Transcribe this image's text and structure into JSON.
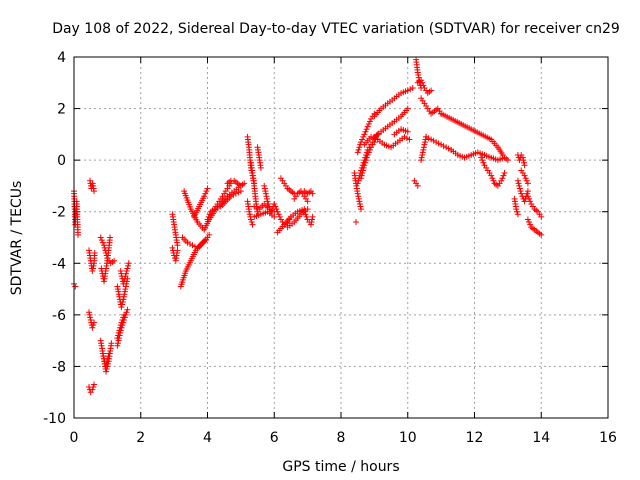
{
  "chart_data": {
    "type": "scatter",
    "title": "Day 108 of 2022, Sidereal Day-to-day VTEC variation (SDTVAR) for receiver cn29",
    "xlabel": "GPS time / hours",
    "ylabel": "SDTVAR / TECUs",
    "xlim": [
      0,
      16
    ],
    "ylim": [
      -10,
      4
    ],
    "xticks": [
      "0",
      "2",
      "4",
      "6",
      "8",
      "10",
      "12",
      "14",
      "16"
    ],
    "yticks": [
      "-10",
      "-8",
      "-6",
      "-4",
      "-2",
      "0",
      "2",
      "4"
    ],
    "grid": true,
    "marker": "+",
    "color": "#ff0000",
    "segments": [
      {
        "x": [
          0.0,
          0.04,
          0.08,
          0.12
        ],
        "y": [
          -1.2,
          -2.5,
          -1.6,
          -2.9
        ]
      },
      {
        "x": [
          0.0,
          0.04
        ],
        "y": [
          -4.8,
          -4.9
        ]
      },
      {
        "x": [
          0.48,
          0.52,
          0.56,
          0.6
        ],
        "y": [
          -0.8,
          -1.1,
          -0.9,
          -1.2
        ]
      },
      {
        "x": [
          0.45,
          0.5,
          0.55,
          0.6
        ],
        "y": [
          -8.8,
          -9.0,
          -8.9,
          -8.7
        ]
      },
      {
        "x": [
          0.45,
          0.5,
          0.55,
          0.6,
          0.62
        ],
        "y": [
          -3.5,
          -3.9,
          -4.3,
          -4.0,
          -3.6
        ]
      },
      {
        "x": [
          0.45,
          0.5,
          0.55,
          0.6
        ],
        "y": [
          -5.9,
          -6.2,
          -6.5,
          -6.3
        ]
      },
      {
        "x": [
          0.8,
          0.9,
          1.0,
          1.1,
          1.2
        ],
        "y": [
          -3.0,
          -3.3,
          -3.8,
          -4.0,
          -3.9
        ]
      },
      {
        "x": [
          0.82,
          0.9,
          1.0,
          1.08
        ],
        "y": [
          -4.2,
          -4.7,
          -3.9,
          -3.0
        ]
      },
      {
        "x": [
          0.8,
          0.88,
          0.96,
          1.04,
          1.12
        ],
        "y": [
          -7.0,
          -7.6,
          -8.2,
          -7.8,
          -7.1
        ]
      },
      {
        "x": [
          0.85,
          0.95,
          1.05
        ],
        "y": [
          -7.4,
          -8.0,
          -7.5
        ]
      },
      {
        "x": [
          1.3,
          1.4,
          1.5,
          1.6
        ],
        "y": [
          -7.2,
          -6.6,
          -6.2,
          -5.8
        ]
      },
      {
        "x": [
          1.3,
          1.36,
          1.42,
          1.48,
          1.54,
          1.6
        ],
        "y": [
          -4.9,
          -5.3,
          -5.7,
          -5.4,
          -5.0,
          -4.6
        ]
      },
      {
        "x": [
          1.4,
          1.48,
          1.56,
          1.64
        ],
        "y": [
          -4.3,
          -4.8,
          -4.4,
          -4.0
        ]
      },
      {
        "x": [
          1.3,
          1.4,
          1.5
        ],
        "y": [
          -6.9,
          -6.4,
          -6.0
        ]
      },
      {
        "x": [
          2.95,
          3.0,
          3.05,
          3.1
        ],
        "y": [
          -2.1,
          -2.5,
          -2.9,
          -3.3
        ]
      },
      {
        "x": [
          2.95,
          3.0,
          3.05,
          3.1
        ],
        "y": [
          -3.4,
          -3.7,
          -3.9,
          -3.5
        ]
      },
      {
        "x": [
          3.2,
          3.35,
          3.5,
          3.65,
          3.8,
          3.95,
          4.05
        ],
        "y": [
          -4.9,
          -4.3,
          -3.9,
          -3.5,
          -3.3,
          -3.1,
          -2.9
        ]
      },
      {
        "x": [
          3.25,
          3.4,
          3.55,
          3.7,
          3.85,
          4.0
        ],
        "y": [
          -3.0,
          -3.2,
          -3.3,
          -3.4,
          -3.2,
          -3.0
        ]
      },
      {
        "x": [
          3.3,
          3.5,
          3.7,
          3.9,
          4.05,
          4.2,
          4.4,
          4.6,
          4.8,
          5.0
        ],
        "y": [
          -1.2,
          -1.9,
          -2.4,
          -2.7,
          -2.3,
          -2.0,
          -1.7,
          -1.4,
          -1.2,
          -1.0
        ]
      },
      {
        "x": [
          3.6,
          3.75,
          3.9,
          4.0
        ],
        "y": [
          -2.2,
          -1.8,
          -1.4,
          -1.1
        ]
      },
      {
        "x": [
          4.0,
          4.1,
          4.2,
          4.3,
          4.4,
          4.5,
          4.6,
          4.7
        ],
        "y": [
          -2.3,
          -2.0,
          -1.9,
          -1.7,
          -1.5,
          -1.3,
          -1.1,
          -0.9
        ]
      },
      {
        "x": [
          4.6,
          4.7,
          4.8,
          4.9,
          5.0,
          5.1
        ],
        "y": [
          -0.9,
          -0.8,
          -0.8,
          -0.9,
          -1.0,
          -0.9
        ]
      },
      {
        "x": [
          4.4,
          4.55,
          4.7,
          4.85,
          5.0
        ],
        "y": [
          -1.8,
          -1.6,
          -1.4,
          -1.3,
          -1.2
        ]
      },
      {
        "x": [
          5.2,
          5.25,
          5.3,
          5.35,
          5.4
        ],
        "y": [
          0.9,
          0.4,
          -0.3,
          -0.6,
          -0.9
        ]
      },
      {
        "x": [
          5.3,
          5.35,
          5.4,
          5.45,
          5.5
        ],
        "y": [
          -0.1,
          -0.5,
          -1.0,
          -1.6,
          -2.0
        ]
      },
      {
        "x": [
          5.5,
          5.55,
          5.6
        ],
        "y": [
          0.5,
          0.1,
          -0.3
        ]
      },
      {
        "x": [
          5.2,
          5.25,
          5.3,
          5.35
        ],
        "y": [
          -1.6,
          -2.0,
          -2.3,
          -2.5
        ]
      },
      {
        "x": [
          5.4,
          5.6,
          5.8,
          6.0
        ],
        "y": [
          -2.2,
          -2.1,
          -2.0,
          -2.2
        ]
      },
      {
        "x": [
          5.4,
          5.55,
          5.7,
          5.85,
          6.0
        ],
        "y": [
          -1.8,
          -1.9,
          -1.7,
          -1.9,
          -2.0
        ]
      },
      {
        "x": [
          5.7,
          5.8,
          5.9,
          6.0
        ],
        "y": [
          -1.0,
          -1.6,
          -2.0,
          -1.7
        ]
      },
      {
        "x": [
          6.2,
          6.3,
          6.4,
          6.5,
          6.6
        ],
        "y": [
          -0.7,
          -0.9,
          -1.1,
          -1.2,
          -1.3
        ]
      },
      {
        "x": [
          6.0,
          6.1,
          6.2,
          6.3,
          6.4,
          6.5
        ],
        "y": [
          -1.7,
          -2.0,
          -2.3,
          -2.5,
          -2.4,
          -2.2
        ]
      },
      {
        "x": [
          6.1,
          6.3,
          6.5,
          6.7,
          6.9
        ],
        "y": [
          -2.8,
          -2.5,
          -2.2,
          -2.0,
          -1.9
        ]
      },
      {
        "x": [
          6.6,
          6.7,
          6.8,
          6.9,
          7.0
        ],
        "y": [
          -1.5,
          -1.3,
          -1.2,
          -1.4,
          -1.6
        ]
      },
      {
        "x": [
          6.8,
          6.9,
          7.0,
          7.1,
          7.15
        ],
        "y": [
          -1.2,
          -1.2,
          -1.3,
          -1.2,
          -1.3
        ]
      },
      {
        "x": [
          6.9,
          7.0,
          7.1,
          7.15
        ],
        "y": [
          -2.0,
          -2.3,
          -2.5,
          -2.2
        ]
      },
      {
        "x": [
          6.4,
          6.6,
          6.8,
          7.0
        ],
        "y": [
          -2.6,
          -2.4,
          -2.1,
          -1.9
        ]
      },
      {
        "x": [
          8.4,
          8.45,
          8.5,
          8.55,
          8.6
        ],
        "y": [
          -0.5,
          -0.9,
          -1.3,
          -1.6,
          -1.9
        ]
      },
      {
        "x": [
          8.45
        ],
        "y": [
          -2.4
        ]
      },
      {
        "x": [
          8.5,
          8.6,
          8.7,
          8.8,
          8.9,
          9.0
        ],
        "y": [
          0.3,
          0.7,
          1.0,
          1.3,
          1.6,
          1.8
        ]
      },
      {
        "x": [
          8.5,
          8.6,
          8.7,
          8.8,
          8.9,
          9.0,
          9.1
        ],
        "y": [
          -0.9,
          -0.4,
          0.0,
          0.4,
          0.6,
          0.8,
          1.0
        ]
      },
      {
        "x": [
          8.6,
          8.7,
          8.8,
          8.9,
          9.0
        ],
        "y": [
          -0.7,
          -0.2,
          0.2,
          0.5,
          0.7
        ]
      },
      {
        "x": [
          9.0,
          9.2,
          9.4,
          9.6,
          9.8,
          10.0,
          10.15
        ],
        "y": [
          1.7,
          2.0,
          2.2,
          2.4,
          2.6,
          2.7,
          2.8
        ]
      },
      {
        "x": [
          9.0,
          9.2,
          9.4,
          9.6,
          9.8,
          10.0
        ],
        "y": [
          0.9,
          1.1,
          1.3,
          1.5,
          1.7,
          2.0
        ]
      },
      {
        "x": [
          9.6,
          9.8,
          10.0
        ],
        "y": [
          1.0,
          1.2,
          1.1
        ]
      },
      {
        "x": [
          8.7,
          8.9,
          9.1,
          9.3,
          9.5,
          9.7,
          9.9,
          10.05
        ],
        "y": [
          0.6,
          0.9,
          0.8,
          0.6,
          0.5,
          0.7,
          0.9,
          0.8
        ]
      },
      {
        "x": [
          10.25,
          10.28,
          10.3,
          10.33,
          10.36,
          10.4
        ],
        "y": [
          3.9,
          3.6,
          3.4,
          3.2,
          3.0,
          2.8
        ]
      },
      {
        "x": [
          10.2,
          10.25,
          10.3
        ],
        "y": [
          -0.8,
          -0.9,
          -1.0
        ]
      },
      {
        "x": [
          10.4,
          10.5,
          10.6,
          10.7,
          10.8,
          10.9,
          11.0
        ],
        "y": [
          2.4,
          2.2,
          2.0,
          1.8,
          1.9,
          2.0,
          1.8
        ]
      },
      {
        "x": [
          10.3,
          10.4,
          10.5,
          10.6,
          10.7
        ],
        "y": [
          3.0,
          3.1,
          2.8,
          2.6,
          2.7
        ]
      },
      {
        "x": [
          10.4,
          10.45,
          10.5,
          10.55
        ],
        "y": [
          0.0,
          0.3,
          0.6,
          0.9
        ]
      },
      {
        "x": [
          10.55,
          10.7,
          10.85,
          11.0,
          11.15,
          11.3
        ],
        "y": [
          0.9,
          0.8,
          0.7,
          0.6,
          0.5,
          0.4
        ]
      },
      {
        "x": [
          11.0,
          11.3,
          11.6,
          11.9,
          12.2,
          12.5,
          12.7,
          12.85
        ],
        "y": [
          1.8,
          1.6,
          1.4,
          1.2,
          1.0,
          0.8,
          0.5,
          0.2
        ]
      },
      {
        "x": [
          11.3,
          11.5,
          11.7,
          11.9,
          12.1,
          12.3,
          12.5,
          12.7,
          12.9,
          13.0
        ],
        "y": [
          0.4,
          0.2,
          0.1,
          0.2,
          0.3,
          0.2,
          0.1,
          0.0,
          0.1,
          0.0
        ]
      },
      {
        "x": [
          12.2,
          12.3,
          12.4,
          12.5,
          12.6,
          12.7,
          12.8,
          12.9
        ],
        "y": [
          0.1,
          -0.2,
          -0.4,
          -0.6,
          -0.9,
          -1.0,
          -0.8,
          -0.5
        ]
      },
      {
        "x": [
          13.3,
          13.4,
          13.5,
          13.6
        ],
        "y": [
          -0.8,
          -1.3,
          -1.6,
          -1.2
        ]
      },
      {
        "x": [
          13.3,
          13.35,
          13.4,
          13.45,
          13.5
        ],
        "y": [
          0.2,
          0.0,
          0.2,
          0.1,
          -0.2
        ]
      },
      {
        "x": [
          13.2,
          13.25,
          13.3
        ],
        "y": [
          -1.5,
          -1.9,
          -2.1
        ]
      },
      {
        "x": [
          13.6,
          13.7,
          13.8,
          13.9,
          14.0
        ],
        "y": [
          -1.4,
          -1.7,
          -1.9,
          -2.0,
          -2.2
        ]
      },
      {
        "x": [
          13.6,
          13.7,
          13.8,
          13.9,
          14.0
        ],
        "y": [
          -2.3,
          -2.6,
          -2.7,
          -2.8,
          -2.9
        ]
      },
      {
        "x": [
          13.4,
          13.5,
          13.6
        ],
        "y": [
          -0.4,
          -0.6,
          -0.9
        ]
      }
    ]
  }
}
